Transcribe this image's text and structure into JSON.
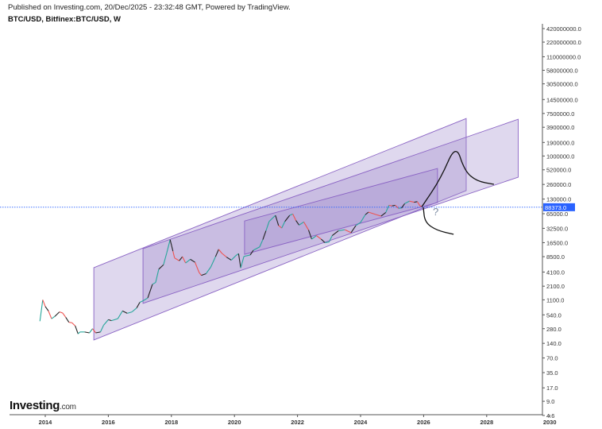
{
  "header": {
    "published": "Published on Investing.com, 20/Dec/2025 - 23:32:48 GMT, Powered by TradingView.",
    "symbol": "BTC/USD, Bitfinex:BTC/USD, W"
  },
  "logo": {
    "main": "Investing",
    "suffix": ".com"
  },
  "colors": {
    "up": "#26a69a",
    "down": "#ef5350",
    "channel_fill": "#9a86c9",
    "channel_line": "#8a63c4",
    "price_line": "#2962ff",
    "price_label_bg": "#2962ff",
    "projection": "#111111",
    "question": "#7a8aa0"
  },
  "chart_data": {
    "type": "line",
    "scale": "log",
    "xlim": [
      2013.0,
      2030.5
    ],
    "ylim": [
      4.6,
      420000000
    ],
    "x_ticks": [
      "2014",
      "2016",
      "2018",
      "2020",
      "2022",
      "2024",
      "2026",
      "2028",
      "2030"
    ],
    "y_ticks": [
      "420000000.0",
      "220000000.0",
      "110000000.0",
      "58000000.0",
      "30500000.0",
      "14500000.0",
      "7500000.0",
      "3900000.0",
      "1900000.0",
      "1000000.0",
      "520000.0",
      "260000.0",
      "130000.0",
      "65000.0",
      "32500.0",
      "16500.0",
      "8500.0",
      "4100.0",
      "2100.0",
      "1100.0",
      "540.0",
      "280.0",
      "140.0",
      "70.0",
      "35.0",
      "17.0",
      "9.0",
      "4.6"
    ],
    "y_tick_values": [
      420000000,
      220000000,
      110000000,
      58000000,
      30500000,
      14500000,
      7500000,
      3900000,
      1900000,
      1000000,
      520000,
      260000,
      130000,
      65000,
      32500,
      16500,
      8500,
      4100,
      2100,
      1100,
      540,
      280,
      140,
      70,
      35,
      17,
      9,
      4.6
    ],
    "last_price": 88373.0,
    "last_price_label": "88373.0",
    "series": [
      {
        "x": [
          2013.83,
          2013.92,
          2014.0,
          2014.1,
          2014.2,
          2014.3,
          2014.45,
          2014.55,
          2014.65,
          2014.75,
          2014.85,
          2014.95,
          2015.04,
          2015.1,
          2015.25,
          2015.4,
          2015.5,
          2015.6,
          2015.75,
          2015.85,
          2016.0,
          2016.1,
          2016.3,
          2016.45,
          2016.6,
          2016.75,
          2016.9,
          2017.0,
          2017.1,
          2017.25,
          2017.4,
          2017.5,
          2017.6,
          2017.75,
          2017.85,
          2017.96,
          2018.05,
          2018.1,
          2018.25,
          2018.35,
          2018.45,
          2018.6,
          2018.75,
          2018.88,
          2018.95,
          2019.1,
          2019.25,
          2019.4,
          2019.5,
          2019.6,
          2019.75,
          2019.9,
          2020.05,
          2020.13,
          2020.2,
          2020.3,
          2020.5,
          2020.6,
          2020.8,
          2020.9,
          2021.0,
          2021.1,
          2021.3,
          2021.4,
          2021.5,
          2021.6,
          2021.75,
          2021.85,
          2021.95,
          2022.05,
          2022.2,
          2022.35,
          2022.45,
          2022.6,
          2022.75,
          2022.87,
          2023.0,
          2023.1,
          2023.3,
          2023.5,
          2023.7,
          2023.85,
          2024.0,
          2024.15,
          2024.25,
          2024.5,
          2024.65,
          2024.8,
          2024.9,
          2025.0,
          2025.1,
          2025.2,
          2025.3,
          2025.4,
          2025.55,
          2025.7,
          2025.8,
          2025.88,
          2025.97
        ],
        "values": [
          400,
          1100,
          800,
          650,
          450,
          500,
          620,
          590,
          480,
          380,
          370,
          320,
          220,
          240,
          240,
          230,
          280,
          230,
          240,
          330,
          430,
          410,
          450,
          650,
          580,
          620,
          750,
          980,
          1050,
          1200,
          2300,
          2500,
          4700,
          5800,
          10000,
          19000,
          11000,
          8000,
          7000,
          8500,
          6300,
          7500,
          6500,
          4000,
          3500,
          3800,
          5200,
          8500,
          12000,
          10000,
          8300,
          7200,
          9000,
          9800,
          5000,
          8600,
          9200,
          11500,
          13500,
          19000,
          29000,
          45000,
          60000,
          37000,
          33000,
          45000,
          60000,
          64000,
          47000,
          38000,
          44000,
          30000,
          19500,
          23000,
          19500,
          16500,
          17000,
          23000,
          29000,
          30500,
          26500,
          37000,
          43000,
          62000,
          70000,
          62000,
          58000,
          69000,
          97000,
          94000,
          97000,
          84000,
          85000,
          105000,
          118000,
          112000,
          115000,
          95000,
          88373
        ]
      }
    ],
    "channels": [
      {
        "corners": [
          [
            2015.54,
            5040
          ],
          [
            2027.35,
            5900000
          ],
          [
            2027.35,
            194000
          ],
          [
            2015.54,
            164
          ]
        ]
      },
      {
        "corners": [
          [
            2017.1,
            12400
          ],
          [
            2029.0,
            5700000
          ],
          [
            2029.0,
            367000
          ],
          [
            2017.1,
            930
          ]
        ]
      },
      {
        "corners": [
          [
            2020.32,
            46000
          ],
          [
            2026.44,
            553000
          ],
          [
            2026.44,
            110000
          ],
          [
            2020.32,
            9500
          ]
        ]
      }
    ],
    "projections": [
      {
        "points": [
          [
            2025.94,
            90000
          ],
          [
            2026.54,
            340000
          ],
          [
            2027.02,
            1780000
          ],
          [
            2027.3,
            495000
          ],
          [
            2027.68,
            304000
          ],
          [
            2028.23,
            262000
          ]
        ]
      },
      {
        "points": [
          [
            2025.99,
            88000
          ],
          [
            2026.04,
            43000
          ],
          [
            2026.42,
            29500
          ],
          [
            2026.95,
            24500
          ]
        ]
      }
    ],
    "annotation": "?"
  }
}
